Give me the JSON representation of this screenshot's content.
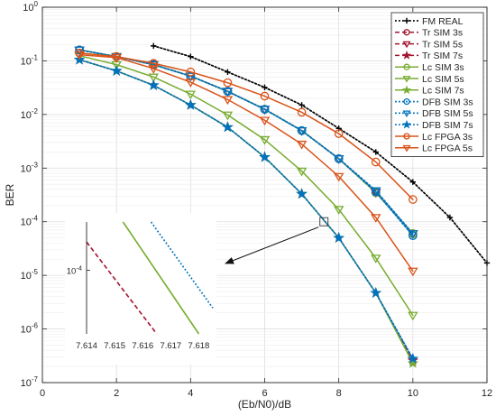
{
  "chart_data": {
    "type": "line",
    "title": "",
    "xlabel": "(Eb/N0)/dB",
    "ylabel": "BER",
    "xlim": [
      0,
      12
    ],
    "ylim": [
      1e-07,
      1
    ],
    "yscale": "log",
    "grid": true,
    "legend_position": "top-right",
    "x_ticks": [
      "0",
      "2",
      "4",
      "6",
      "8",
      "10",
      "12"
    ],
    "y_ticks": [
      {
        "base": "10",
        "exp": "0"
      },
      {
        "base": "10",
        "exp": "-1"
      },
      {
        "base": "10",
        "exp": "-2"
      },
      {
        "base": "10",
        "exp": "-3"
      },
      {
        "base": "10",
        "exp": "-4"
      },
      {
        "base": "10",
        "exp": "-5"
      },
      {
        "base": "10",
        "exp": "-6"
      },
      {
        "base": "10",
        "exp": "-7"
      }
    ],
    "series": [
      {
        "name": "FM REAL",
        "color": "#000000",
        "dash": "dotted",
        "marker": "plus",
        "x": [
          3,
          4,
          5,
          6,
          7,
          8,
          9,
          10,
          11,
          12
        ],
        "y": [
          0.19,
          0.12,
          0.062,
          0.032,
          0.015,
          0.0055,
          0.002,
          0.00055,
          0.00012,
          1.7e-05
        ]
      },
      {
        "name": "Tr SIM 3s",
        "color": "#a2142f",
        "dash": "dashed",
        "marker": "circle",
        "x": [
          1,
          2,
          3,
          4,
          5,
          6,
          7,
          8,
          9,
          10
        ],
        "y": [
          0.16,
          0.12,
          0.085,
          0.052,
          0.027,
          0.0125,
          0.005,
          0.0015,
          0.00035,
          6e-05
        ]
      },
      {
        "name": "Tr SIM 5s",
        "color": "#a2142f",
        "dash": "dashed",
        "marker": "triangle-down",
        "x": [
          1,
          2,
          3,
          4,
          5,
          6,
          7,
          8,
          9,
          10
        ],
        "y": [
          0.16,
          0.12,
          0.085,
          0.052,
          0.027,
          0.0125,
          0.005,
          0.0015,
          0.00035,
          6e-05
        ]
      },
      {
        "name": "Tr SIM 7s",
        "color": "#a2142f",
        "dash": "dashed",
        "marker": "star",
        "x": [
          1,
          2,
          3,
          4,
          5,
          6,
          7,
          8,
          9,
          10
        ],
        "y": [
          0.105,
          0.065,
          0.035,
          0.015,
          0.0058,
          0.0016,
          0.00033,
          5e-05,
          4.7e-06,
          2.6e-07
        ]
      },
      {
        "name": "Lc SIM 3s",
        "color": "#77ac30",
        "dash": "solid",
        "marker": "circle",
        "x": [
          1,
          2,
          3,
          4,
          5,
          6,
          7,
          8,
          9,
          10
        ],
        "y": [
          0.16,
          0.12,
          0.085,
          0.052,
          0.027,
          0.0125,
          0.005,
          0.0015,
          0.00035,
          6e-05
        ]
      },
      {
        "name": "Lc SIM 5s",
        "color": "#77ac30",
        "dash": "solid",
        "marker": "triangle-down",
        "x": [
          1,
          2,
          3,
          4,
          5,
          6,
          7,
          8,
          9,
          10
        ],
        "y": [
          0.125,
          0.085,
          0.05,
          0.024,
          0.0098,
          0.0034,
          0.00088,
          0.00017,
          2.1e-05,
          1.8e-06
        ]
      },
      {
        "name": "Lc SIM 7s",
        "color": "#77ac30",
        "dash": "solid",
        "marker": "star",
        "x": [
          1,
          2,
          3,
          4,
          5,
          6,
          7,
          8,
          9,
          10
        ],
        "y": [
          0.105,
          0.065,
          0.035,
          0.015,
          0.0058,
          0.0016,
          0.00033,
          5e-05,
          4.7e-06,
          2.3e-07
        ]
      },
      {
        "name": "DFB SIM 3s",
        "color": "#0072bd",
        "dash": "dotted",
        "marker": "circle",
        "x": [
          1,
          2,
          3,
          4,
          5,
          6,
          7,
          8,
          9,
          10
        ],
        "y": [
          0.16,
          0.12,
          0.085,
          0.052,
          0.027,
          0.0125,
          0.005,
          0.0015,
          0.00036,
          5.5e-05
        ]
      },
      {
        "name": "DFB SIM 5s",
        "color": "#0072bd",
        "dash": "dotted",
        "marker": "triangle-down",
        "x": [
          1,
          2,
          3,
          4,
          5,
          6,
          7,
          8,
          9,
          10
        ],
        "y": [
          0.16,
          0.12,
          0.085,
          0.052,
          0.027,
          0.0125,
          0.005,
          0.0015,
          0.00038,
          6e-05
        ]
      },
      {
        "name": "DFB SIM 7s",
        "color": "#0072bd",
        "dash": "dotted",
        "marker": "star",
        "x": [
          1,
          2,
          3,
          4,
          5,
          6,
          7,
          8,
          9,
          10
        ],
        "y": [
          0.105,
          0.065,
          0.035,
          0.015,
          0.0058,
          0.0016,
          0.00033,
          5e-05,
          4.7e-06,
          2.8e-07
        ]
      },
      {
        "name": "Lc FPGA 3s",
        "color": "#d95319",
        "dash": "solid",
        "marker": "circle",
        "x": [
          1,
          2,
          3,
          4,
          5,
          6,
          7,
          8,
          9,
          10
        ],
        "y": [
          0.14,
          0.12,
          0.09,
          0.062,
          0.039,
          0.022,
          0.011,
          0.0044,
          0.0013,
          0.00026
        ]
      },
      {
        "name": "Lc FPGA 5s",
        "color": "#d95319",
        "dash": "solid",
        "marker": "triangle-down",
        "x": [
          1,
          2,
          3,
          4,
          5,
          6,
          7,
          8,
          9,
          10
        ],
        "y": [
          0.13,
          0.115,
          0.072,
          0.04,
          0.019,
          0.0078,
          0.0028,
          0.0007,
          0.00012,
          1.2e-05
        ]
      }
    ],
    "annotation": {
      "type": "zoom-box",
      "x": 7.6,
      "y": 0.0001
    },
    "inset": {
      "x_ticks": [
        "7.614",
        "7.615",
        "7.616",
        "7.617",
        "7.618"
      ],
      "xlim": [
        7.614,
        7.6185
      ],
      "ylim": [
        4e-05,
        0.0002
      ],
      "y_tick_label": {
        "base": "10",
        "exp": "-4"
      },
      "series": [
        {
          "name": "Tr SIM 7s",
          "color": "#a2142f",
          "dash": "dashed",
          "x": [
            7.614,
            7.6165
          ],
          "y": [
            0.00015,
            4e-05
          ]
        },
        {
          "name": "Lc SIM 7s",
          "color": "#77ac30",
          "dash": "solid",
          "x": [
            7.6153,
            7.618
          ],
          "y": [
            0.0002,
            4e-05
          ]
        },
        {
          "name": "DFB SIM 7s",
          "color": "#0072bd",
          "dash": "dotted",
          "x": [
            7.6163,
            7.6185
          ],
          "y": [
            0.0002,
            5.8e-05
          ]
        }
      ]
    }
  }
}
